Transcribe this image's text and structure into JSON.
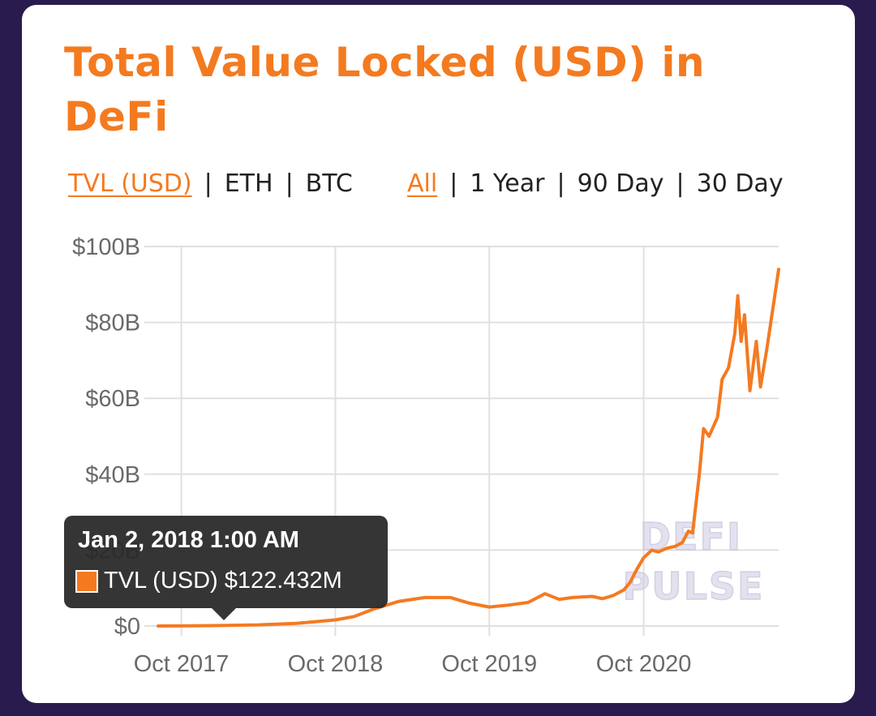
{
  "title": "Total Value Locked (USD) in DeFi",
  "tabs_left": [
    {
      "label": "TVL (USD)",
      "active": true
    },
    {
      "label": "ETH",
      "active": false
    },
    {
      "label": "BTC",
      "active": false
    }
  ],
  "tabs_right": [
    {
      "label": "All",
      "active": true
    },
    {
      "label": "1 Year",
      "active": false
    },
    {
      "label": "90 Day",
      "active": false
    },
    {
      "label": "30 Day",
      "active": false
    }
  ],
  "separator": "|",
  "tooltip": {
    "date": "Jan 2, 2018 1:00 AM",
    "series": "TVL (USD)",
    "value": "$122.432M"
  },
  "watermark": [
    "DEFI",
    "PULSE"
  ],
  "colors": {
    "accent": "#f47a20",
    "background": "#2a1b4e",
    "grid": "#e0e0e0"
  },
  "chart_data": {
    "type": "line",
    "title": "Total Value Locked (USD) in DeFi",
    "xlabel": "",
    "ylabel": "",
    "x_tick_labels": [
      "Oct 2017",
      "Oct 2018",
      "Oct 2019",
      "Oct 2020"
    ],
    "y_tick_labels": [
      "$0",
      "$20B",
      "$40B",
      "$60B",
      "$80B",
      "$100B"
    ],
    "xlim": [
      "2017-08-07",
      "2021-08-17"
    ],
    "ylim": [
      0,
      100
    ],
    "y_unit": "billion USD",
    "grid": true,
    "series": [
      {
        "name": "TVL (USD)",
        "color": "#f47a20",
        "x": [
          "2017-08-07",
          "2017-10-01",
          "2018-01-02",
          "2018-04-01",
          "2018-07-01",
          "2018-10-01",
          "2018-11-15",
          "2019-01-01",
          "2019-03-01",
          "2019-05-01",
          "2019-07-01",
          "2019-08-15",
          "2019-10-01",
          "2019-11-15",
          "2020-01-01",
          "2020-02-10",
          "2020-03-15",
          "2020-04-15",
          "2020-06-01",
          "2020-06-25",
          "2020-07-20",
          "2020-08-15",
          "2020-08-30",
          "2020-09-15",
          "2020-10-01",
          "2020-10-20",
          "2020-11-05",
          "2020-11-25",
          "2020-12-15",
          "2021-01-01",
          "2021-01-15",
          "2021-01-25",
          "2021-02-10",
          "2021-02-20",
          "2021-03-05",
          "2021-03-25",
          "2021-04-05",
          "2021-04-20",
          "2021-05-05",
          "2021-05-12",
          "2021-05-20",
          "2021-05-28",
          "2021-06-10",
          "2021-06-25",
          "2021-07-05",
          "2021-07-20",
          "2021-08-05",
          "2021-08-17"
        ],
        "y": [
          0.0,
          0.02,
          0.12,
          0.3,
          0.7,
          1.6,
          2.5,
          4.5,
          6.5,
          7.5,
          7.5,
          6.0,
          5.0,
          5.5,
          6.2,
          8.5,
          7.0,
          7.5,
          7.8,
          7.2,
          8.0,
          9.5,
          11.5,
          15.0,
          18.0,
          20.0,
          19.5,
          20.5,
          21.0,
          22.0,
          25.0,
          24.5,
          40.0,
          52.0,
          50.0,
          55.0,
          65.0,
          68.0,
          77.0,
          87.0,
          75.0,
          82.0,
          62.0,
          75.0,
          63.0,
          73.0,
          85.0,
          94.0
        ]
      }
    ]
  }
}
